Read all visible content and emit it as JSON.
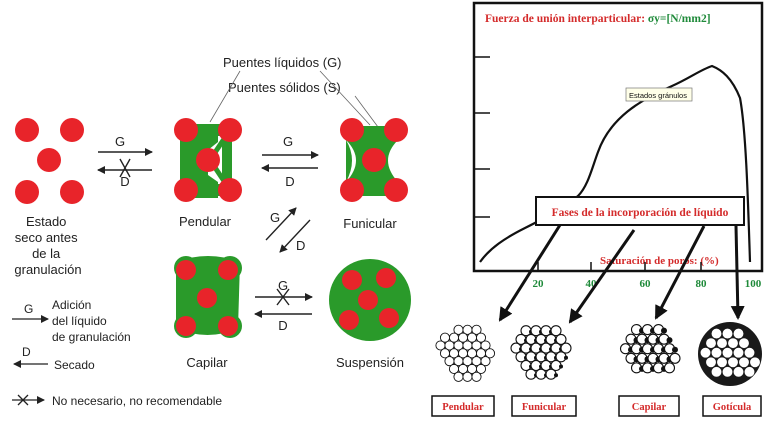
{
  "left": {
    "liquid_bridges": "Puentes líquidos (G)",
    "solid_bridges": "Puentes sólidos (S)",
    "dry_state": [
      "Estado",
      "seco antes",
      "de la",
      "granulación"
    ],
    "states": {
      "pendular": "Pendular",
      "funicular": "Funicular",
      "capilar": "Capilar",
      "suspension": "Suspensión"
    },
    "arrow_g": "G",
    "arrow_d": "D",
    "legend": {
      "g_letter": "G",
      "g_text": [
        "Adición",
        "del líquido",
        "de granulación"
      ],
      "d_letter": "D",
      "d_text": "Secado",
      "x_text": "No necesario, no recomendable"
    }
  },
  "right": {
    "force_label": "Fuerza de unión  interparticular: ",
    "force_formula": "σy=[N/mm2]",
    "tooltip": "Estados gránulos",
    "phases_label": "Fases de la incorporación de líquido",
    "saturation_label": "Saturación de poros: (%)",
    "ticks": [
      "20",
      "40",
      "60",
      "80",
      "100"
    ],
    "boxes": [
      "Pendular",
      "Funicular",
      "Capilar",
      "Gotícula"
    ]
  },
  "colors": {
    "particle": "#e8242a",
    "binder": "#2a9a2a",
    "title_red": "#d42b2b",
    "formula_green": "#1f8a3a"
  }
}
